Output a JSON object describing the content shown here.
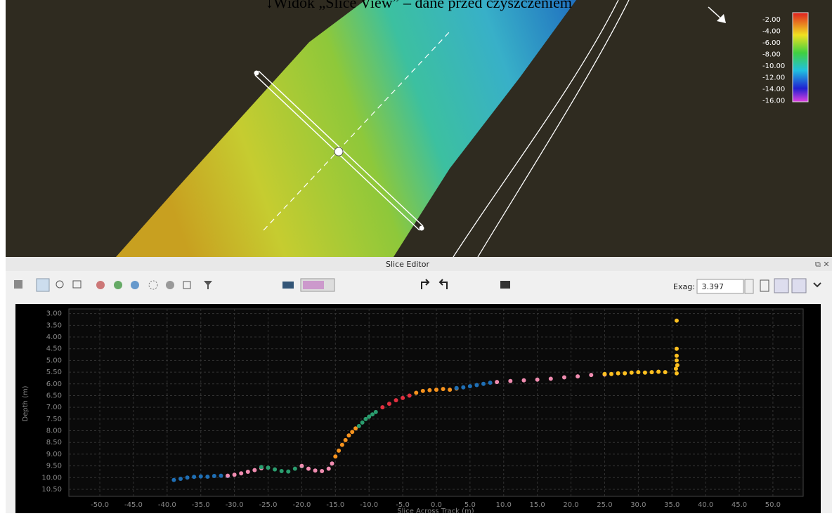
{
  "view_title": "↓Widok „Slice View” – dane przed czyszczeniem",
  "color_scale": [
    "-2.00",
    "-4.00",
    "-6.00",
    "-8.00",
    "-10.00",
    "-12.00",
    "-14.00",
    "-16.00"
  ],
  "slice_editor": {
    "title": "Slice Editor",
    "exag_label": "Exag:",
    "exag_value": "3.397"
  },
  "chart_data": {
    "type": "scatter",
    "x_label": "Slice Across Track (m)",
    "y_label": "Depth (m)",
    "xlim": [
      -54.6,
      54.5
    ],
    "ylim": [
      2.8,
      10.8
    ],
    "y_inverted": true,
    "grid": true,
    "xticks": [
      {
        "value": -50,
        "label": "-50.0"
      },
      {
        "value": -45,
        "label": "-45.0"
      },
      {
        "value": -40,
        "label": "-40.0"
      },
      {
        "value": -35,
        "label": "-35.0"
      },
      {
        "value": -30,
        "label": "-30.0"
      },
      {
        "value": -25,
        "label": "-25.0"
      },
      {
        "value": -20,
        "label": "-20.0"
      },
      {
        "value": -15,
        "label": "-15.0"
      },
      {
        "value": -10,
        "label": "-10.0"
      },
      {
        "value": -5,
        "label": "-5.0"
      },
      {
        "value": 0,
        "label": "0.0"
      },
      {
        "value": 5,
        "label": "5.0"
      },
      {
        "value": 10,
        "label": "10.0"
      },
      {
        "value": 15,
        "label": "15.0"
      },
      {
        "value": 20,
        "label": "20.0"
      },
      {
        "value": 25,
        "label": "25.0"
      },
      {
        "value": 30,
        "label": "30.0"
      },
      {
        "value": 35,
        "label": "35.0"
      },
      {
        "value": 40,
        "label": "40.0"
      },
      {
        "value": 45,
        "label": "45.0"
      },
      {
        "value": 50,
        "label": "50.0"
      }
    ],
    "yticks": [
      {
        "value": 3,
        "label": "3.00"
      },
      {
        "value": 3.5,
        "label": "3.50"
      },
      {
        "value": 4,
        "label": "4.00"
      },
      {
        "value": 4.5,
        "label": "4.50"
      },
      {
        "value": 5,
        "label": "5.00"
      },
      {
        "value": 5.5,
        "label": "5.50"
      },
      {
        "value": 6,
        "label": "6.00"
      },
      {
        "value": 6.5,
        "label": "6.50"
      },
      {
        "value": 7,
        "label": "7.00"
      },
      {
        "value": 7.5,
        "label": "7.50"
      },
      {
        "value": 8,
        "label": "8.00"
      },
      {
        "value": 8.5,
        "label": "8.50"
      },
      {
        "value": 9,
        "label": "9.00"
      },
      {
        "value": 9.5,
        "label": "9.50"
      },
      {
        "value": 10,
        "label": "10.00"
      },
      {
        "value": 10.5,
        "label": "10.50"
      }
    ],
    "series": [
      {
        "color": "#1f6fb5",
        "x": [
          -39,
          -38,
          -37,
          -36,
          -35,
          -34,
          -33,
          -32,
          -31
        ],
        "values": [
          10.1,
          10.05,
          10.0,
          9.97,
          9.95,
          9.96,
          9.93,
          9.92,
          9.93
        ]
      },
      {
        "color": "#f08cb0",
        "x": [
          -31,
          -30,
          -29,
          -28,
          -27,
          -26
        ],
        "values": [
          9.92,
          9.88,
          9.82,
          9.75,
          9.68,
          9.6
        ]
      },
      {
        "color": "#2a9d6e",
        "x": [
          -26,
          -25,
          -24,
          -23,
          -22,
          -21,
          -20
        ],
        "values": [
          9.55,
          9.58,
          9.65,
          9.72,
          9.74,
          9.62,
          9.52
        ]
      },
      {
        "color": "#f08cb0",
        "x": [
          -20,
          -19,
          -18,
          -17,
          -16,
          -15.5
        ],
        "values": [
          9.5,
          9.62,
          9.7,
          9.72,
          9.62,
          9.4
        ]
      },
      {
        "color": "#f7931e",
        "x": [
          -15,
          -14.5,
          -14,
          -13.5,
          -13,
          -12.5,
          -12
        ],
        "values": [
          9.1,
          8.85,
          8.6,
          8.4,
          8.2,
          8.05,
          7.9
        ]
      },
      {
        "color": "#2a9d6e",
        "x": [
          -11.5,
          -11,
          -10.5,
          -10,
          -9.5,
          -9
        ],
        "values": [
          7.8,
          7.65,
          7.5,
          7.4,
          7.3,
          7.2
        ]
      },
      {
        "color": "#e03040",
        "x": [
          -8,
          -7,
          -6,
          -5,
          -4
        ],
        "values": [
          7.0,
          6.85,
          6.7,
          6.6,
          6.5
        ]
      },
      {
        "color": "#f7931e",
        "x": [
          -3,
          -2,
          -1,
          0,
          1,
          2,
          3
        ],
        "values": [
          6.38,
          6.3,
          6.27,
          6.25,
          6.22,
          6.25,
          6.2
        ]
      },
      {
        "color": "#1f6fb5",
        "x": [
          3,
          4,
          5,
          6,
          7,
          8
        ],
        "values": [
          6.18,
          6.15,
          6.1,
          6.05,
          6.0,
          5.95
        ]
      },
      {
        "color": "#f08cb0",
        "x": [
          9,
          11,
          13,
          15,
          17,
          19,
          21,
          23,
          25
        ],
        "values": [
          5.92,
          5.88,
          5.85,
          5.82,
          5.78,
          5.72,
          5.68,
          5.62,
          5.6
        ]
      },
      {
        "color": "#ffc020",
        "x": [
          25,
          26,
          27,
          28,
          29,
          30,
          31,
          32,
          33,
          34,
          35.7,
          35.7,
          35.7,
          35.7,
          35.8,
          35.6,
          35.7
        ],
        "values": [
          5.58,
          5.58,
          5.55,
          5.55,
          5.52,
          5.5,
          5.52,
          5.5,
          5.48,
          5.5,
          3.3,
          4.5,
          4.8,
          5.0,
          5.2,
          5.35,
          5.55
        ]
      }
    ]
  }
}
